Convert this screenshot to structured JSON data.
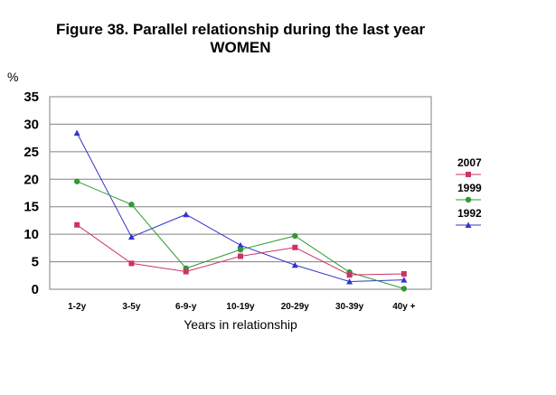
{
  "chart_data": {
    "type": "line",
    "title": "Figure 38. Parallel relationship during the last year",
    "subtitle": "WOMEN",
    "ylabel": "%",
    "xlabel": "Years in relationship",
    "categories": [
      "1-2y",
      "3-5y",
      "6-9-y",
      "10-19y",
      "20-29y",
      "30-39y",
      "40y +"
    ],
    "ylim": [
      0,
      35
    ],
    "yticks": [
      "0",
      "5",
      "10",
      "15",
      "20",
      "25",
      "30",
      "35"
    ],
    "grid": true,
    "legend_position": "right",
    "series": [
      {
        "name": "2007",
        "color": "#cc3366",
        "marker": "square",
        "values": [
          11.7,
          4.7,
          3.2,
          6.0,
          7.6,
          2.6,
          2.8
        ]
      },
      {
        "name": "1999",
        "color": "#339933",
        "marker": "circle",
        "values": [
          19.6,
          15.4,
          3.8,
          7.2,
          9.7,
          3.1,
          0.1
        ]
      },
      {
        "name": "1992",
        "color": "#3333cc",
        "marker": "triangle",
        "values": [
          28.4,
          9.5,
          13.6,
          8.0,
          4.4,
          1.4,
          1.7
        ]
      }
    ]
  }
}
